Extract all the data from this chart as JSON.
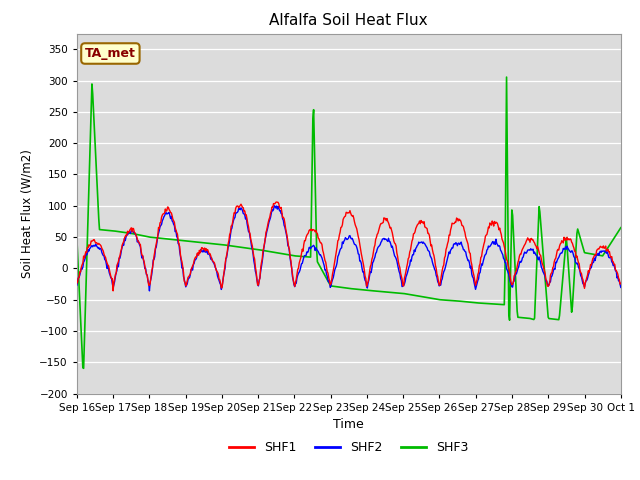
{
  "title": "Alfalfa Soil Heat Flux",
  "xlabel": "Time",
  "ylabel": "Soil Heat Flux (W/m2)",
  "ylim": [
    -200,
    375
  ],
  "yticks": [
    -200,
    -150,
    -100,
    -50,
    0,
    50,
    100,
    150,
    200,
    250,
    300,
    350
  ],
  "shf1_color": "#ff0000",
  "shf2_color": "#0000ff",
  "shf3_color": "#00bb00",
  "bg_color": "#dcdcdc",
  "annotation_text": "TA_met",
  "annotation_bg": "#ffffcc",
  "annotation_border": "#996600",
  "annotation_text_color": "#880000",
  "legend_labels": [
    "SHF1",
    "SHF2",
    "SHF3"
  ],
  "x_tick_labels": [
    "Sep 16",
    "Sep 17",
    "Sep 18",
    "Sep 19",
    "Sep 20",
    "Sep 21",
    "Sep 22",
    "Sep 23",
    "Sep 24",
    "Sep 25",
    "Sep 26",
    "Sep 27",
    "Sep 28",
    "Sep 29",
    "Sep 30",
    "Oct 1"
  ],
  "num_days": 15,
  "points_per_day": 48,
  "shf1_peaks": [
    45,
    62,
    95,
    32,
    102,
    106,
    62,
    90,
    77,
    75,
    78,
    75,
    48,
    48,
    35,
    30
  ],
  "shf2_peaks": [
    38,
    58,
    88,
    28,
    95,
    100,
    35,
    50,
    48,
    42,
    42,
    42,
    30,
    32,
    28,
    22
  ],
  "shf1_troughs": [
    -25,
    -30,
    -30,
    -30,
    -30,
    -30,
    -30,
    -30,
    -30,
    -30,
    -30,
    -30,
    -30,
    -30,
    -28,
    -25
  ],
  "shf2_troughs": [
    -28,
    -32,
    -32,
    -32,
    -32,
    -32,
    -32,
    -32,
    -32,
    -32,
    -32,
    -32,
    -30,
    -30,
    -28,
    -25
  ],
  "shf3_kx": [
    0.0,
    0.18,
    0.42,
    0.62,
    1.0,
    1.5,
    2.0,
    3.0,
    4.0,
    5.0,
    6.0,
    6.45,
    6.52,
    6.62,
    7.0,
    7.5,
    8.0,
    9.0,
    9.5,
    10.0,
    10.5,
    11.0,
    11.8,
    11.85,
    11.92,
    12.0,
    12.15,
    12.5,
    12.62,
    12.75,
    13.0,
    13.3,
    13.5,
    13.65,
    13.8,
    14.0,
    14.5,
    15.0
  ],
  "shf3_ky": [
    50,
    -175,
    300,
    62,
    60,
    56,
    50,
    44,
    38,
    30,
    20,
    18,
    280,
    12,
    -28,
    -32,
    -35,
    -40,
    -45,
    -50,
    -52,
    -55,
    -58,
    307,
    -120,
    105,
    -78,
    -80,
    -82,
    103,
    -80,
    -82,
    50,
    -75,
    65,
    25,
    20,
    65
  ]
}
